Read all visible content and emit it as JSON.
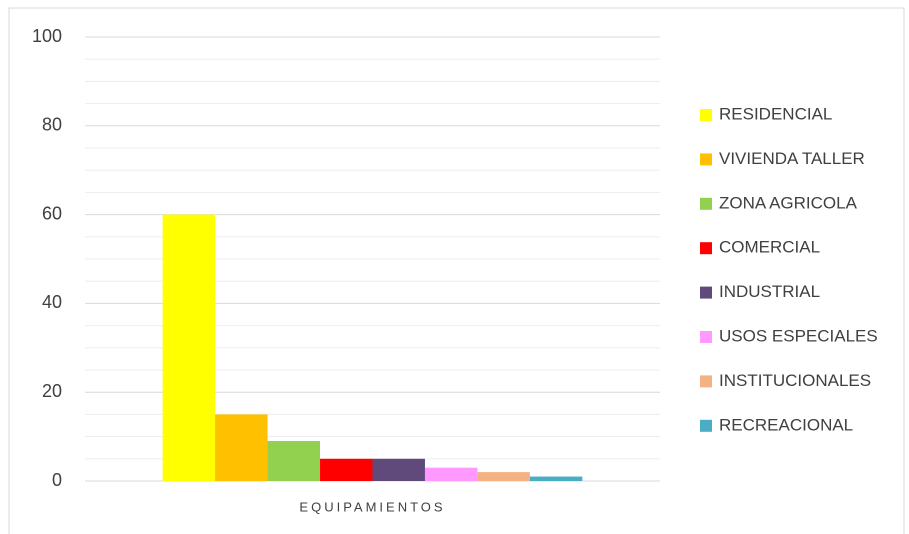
{
  "chart_data": {
    "type": "bar",
    "categories": [
      "EQUIPAMIENTOS"
    ],
    "series": [
      {
        "name": "RESIDENCIAL",
        "color": "#ffff00",
        "values": [
          60
        ]
      },
      {
        "name": "VIVIENDA TALLER",
        "color": "#ffc000",
        "values": [
          15
        ]
      },
      {
        "name": "ZONA AGRICOLA",
        "color": "#92d050",
        "values": [
          9
        ]
      },
      {
        "name": "COMERCIAL",
        "color": "#ff0000",
        "values": [
          5
        ]
      },
      {
        "name": "INDUSTRIAL",
        "color": "#604a7b",
        "values": [
          5
        ]
      },
      {
        "name": "USOS ESPECIALES",
        "color": "#ff99ff",
        "values": [
          3
        ]
      },
      {
        "name": "INSTITUCIONALES",
        "color": "#f4b183",
        "values": [
          2
        ]
      },
      {
        "name": "RECREACIONAL",
        "color": "#4bacc6",
        "values": [
          1
        ]
      }
    ],
    "ylim": [
      0,
      100
    ],
    "yticks": [
      0,
      20,
      40,
      60,
      80,
      100
    ],
    "yminor_ticks": [
      5,
      10,
      15,
      25,
      30,
      35,
      45,
      50,
      55,
      65,
      70,
      75,
      85,
      90,
      95
    ],
    "grid": true,
    "legend": "right"
  }
}
